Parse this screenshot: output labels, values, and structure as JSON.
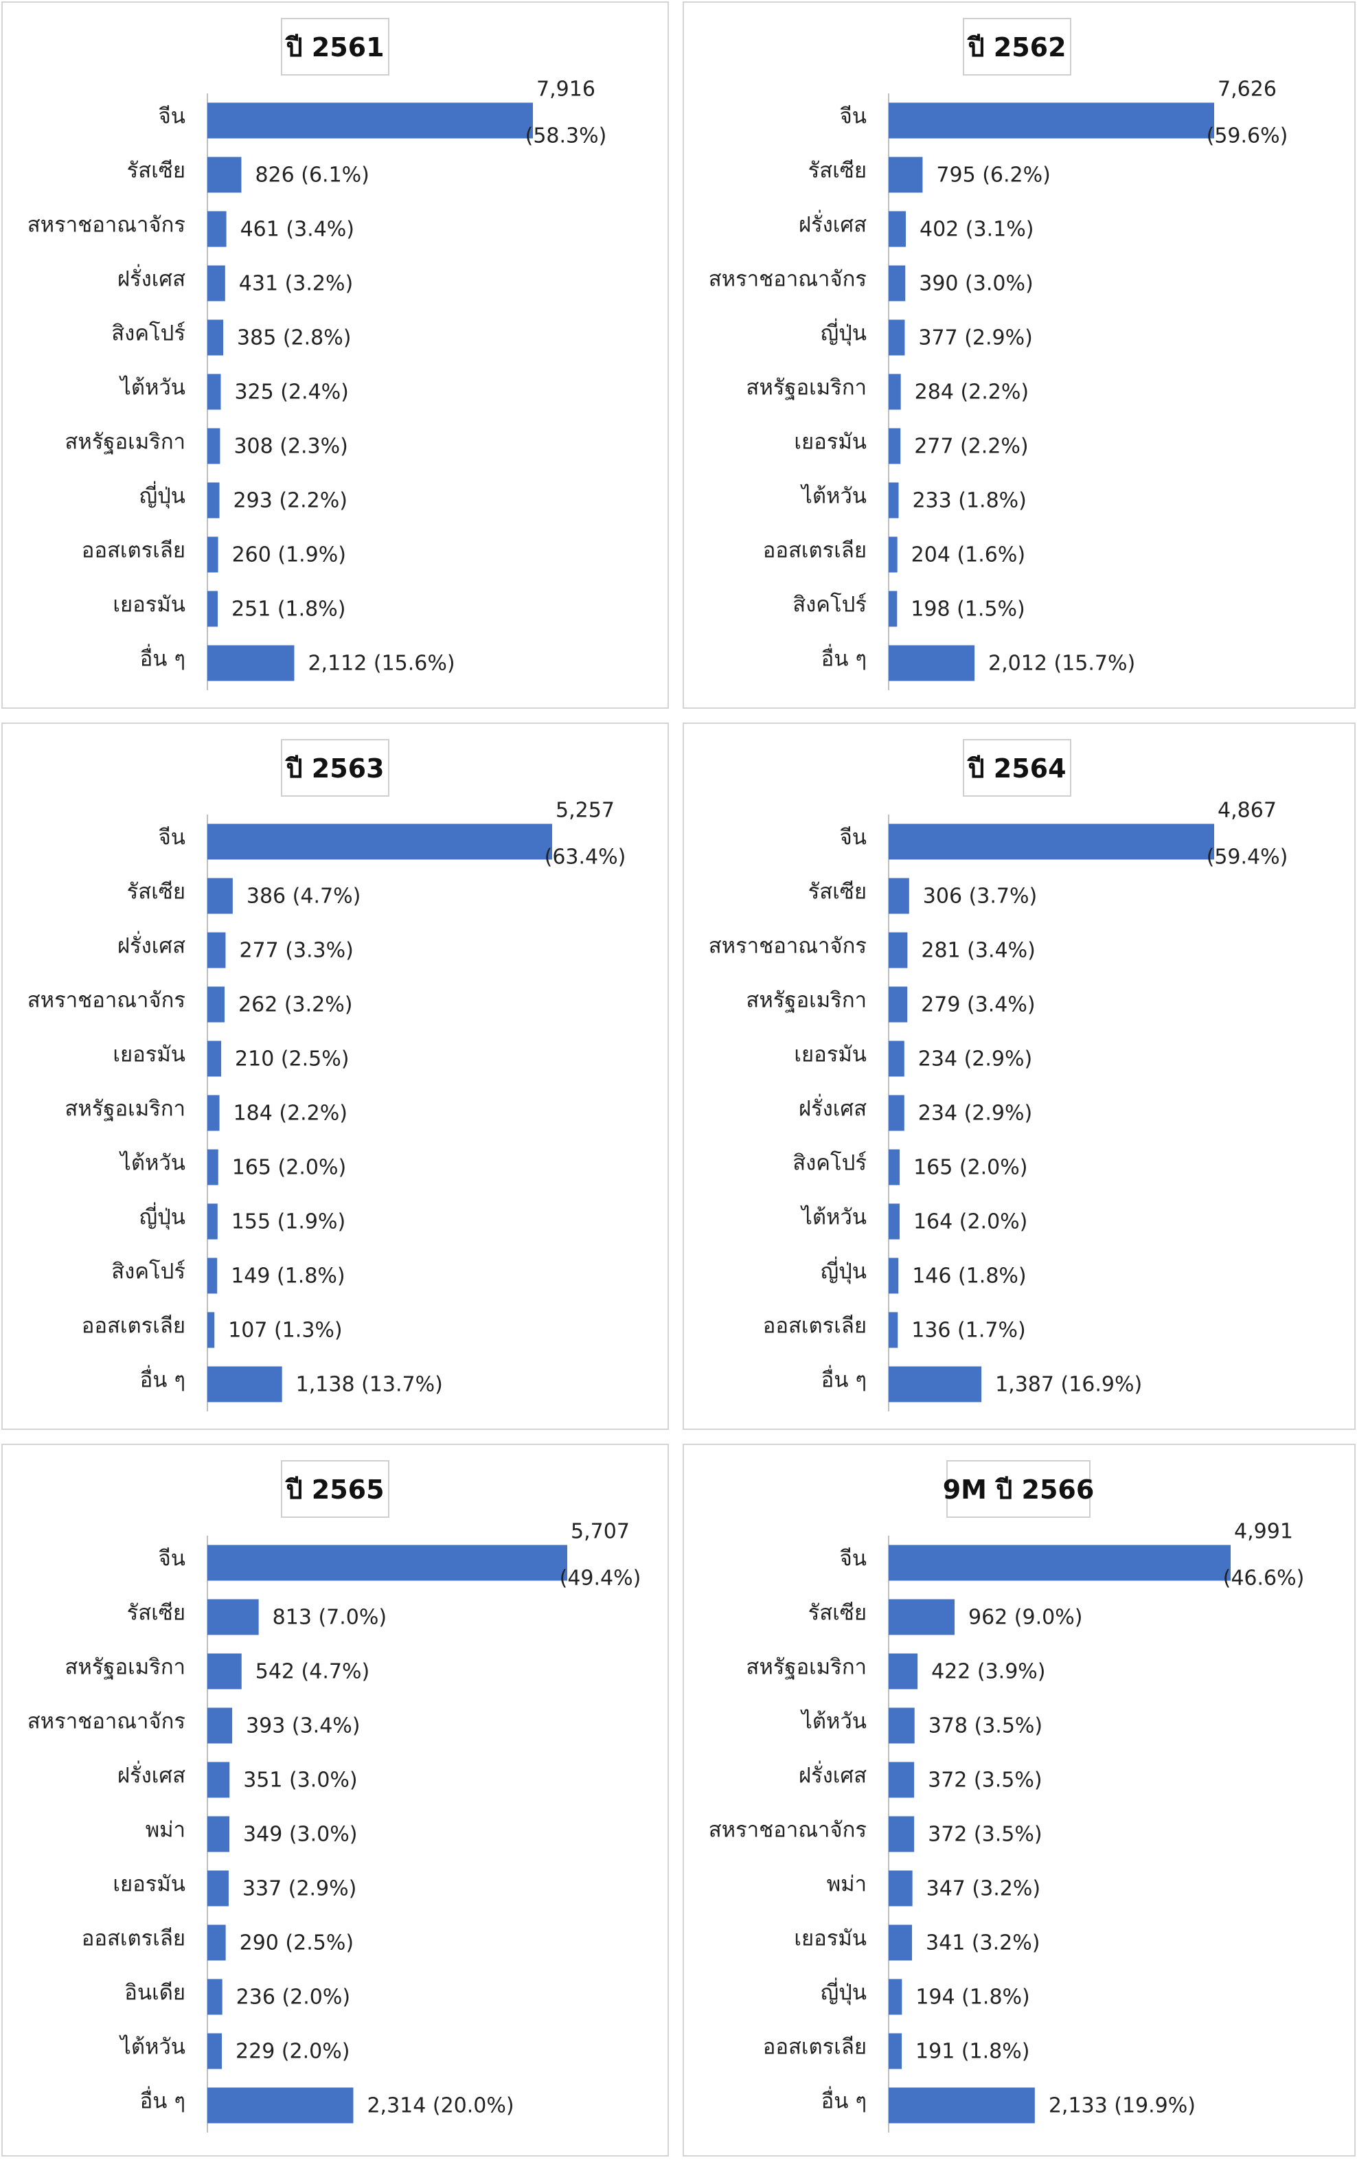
{
  "style": {
    "bar_color": "#4472C4",
    "axis_color": "#bfbfbf"
  },
  "chart_data": [
    {
      "type": "bar",
      "orientation": "horizontal",
      "title": "ปี 2561",
      "categories": [
        "จีน",
        "รัสเซีย",
        "สหราชอาณาจักร",
        "ฝรั่งเศส",
        "สิงคโปร์",
        "ไต้หวัน",
        "สหรัฐอเมริกา",
        "ญี่ปุ่น",
        "ออสเตรเลีย",
        "เยอรมัน",
        "อื่น ๆ"
      ],
      "values": [
        7916,
        826,
        461,
        431,
        385,
        325,
        308,
        293,
        260,
        251,
        2112
      ],
      "data_labels": [
        "7,916 (58.3%)",
        "826 (6.1%)",
        "461 (3.4%)",
        "431 (3.2%)",
        "385 (2.8%)",
        "325 (2.4%)",
        "308 (2.3%)",
        "293 (2.2%)",
        "260 (1.9%)",
        "251 (1.8%)",
        "2,112 (15.6%)"
      ]
    },
    {
      "type": "bar",
      "orientation": "horizontal",
      "title": "ปี 2562",
      "categories": [
        "จีน",
        "รัสเซีย",
        "ฝรั่งเศส",
        "สหราชอาณาจักร",
        "ญี่ปุ่น",
        "สหรัฐอเมริกา",
        "เยอรมัน",
        "ไต้หวัน",
        "ออสเตรเลีย",
        "สิงคโปร์",
        "อื่น ๆ"
      ],
      "values": [
        7626,
        795,
        402,
        390,
        377,
        284,
        277,
        233,
        204,
        198,
        2012
      ],
      "data_labels": [
        "7,626 (59.6%)",
        "795 (6.2%)",
        "402 (3.1%)",
        "390 (3.0%)",
        "377 (2.9%)",
        "284 (2.2%)",
        "277 (2.2%)",
        "233 (1.8%)",
        "204 (1.6%)",
        "198 (1.5%)",
        "2,012 (15.7%)"
      ]
    },
    {
      "type": "bar",
      "orientation": "horizontal",
      "title": "ปี 2563",
      "categories": [
        "จีน",
        "รัสเซีย",
        "ฝรั่งเศส",
        "สหราชอาณาจักร",
        "เยอรมัน",
        "สหรัฐอเมริกา",
        "ไต้หวัน",
        "ญี่ปุ่น",
        "สิงคโปร์",
        "ออสเตรเลีย",
        "อื่น ๆ"
      ],
      "values": [
        5257,
        386,
        277,
        262,
        210,
        184,
        165,
        155,
        149,
        107,
        1138
      ],
      "data_labels": [
        "5,257 (63.4%)",
        "386 (4.7%)",
        "277 (3.3%)",
        "262 (3.2%)",
        "210 (2.5%)",
        "184 (2.2%)",
        "165 (2.0%)",
        "155 (1.9%)",
        "149 (1.8%)",
        "107 (1.3%)",
        "1,138 (13.7%)"
      ]
    },
    {
      "type": "bar",
      "orientation": "horizontal",
      "title": "ปี 2564",
      "categories": [
        "จีน",
        "รัสเซีย",
        "สหราชอาณาจักร",
        "สหรัฐอเมริกา",
        "เยอรมัน",
        "ฝรั่งเศส",
        "สิงคโปร์",
        "ไต้หวัน",
        "ญี่ปุ่น",
        "ออสเตรเลีย",
        "อื่น ๆ"
      ],
      "values": [
        4867,
        306,
        281,
        279,
        234,
        234,
        165,
        164,
        146,
        136,
        1387
      ],
      "data_labels": [
        "4,867 (59.4%)",
        "306 (3.7%)",
        "281 (3.4%)",
        "279 (3.4%)",
        "234 (2.9%)",
        "234 (2.9%)",
        "165 (2.0%)",
        "164 (2.0%)",
        "146 (1.8%)",
        "136 (1.7%)",
        "1,387 (16.9%)"
      ]
    },
    {
      "type": "bar",
      "orientation": "horizontal",
      "title": "ปี 2565",
      "categories": [
        "จีน",
        "รัสเซีย",
        "สหรัฐอเมริกา",
        "สหราชอาณาจักร",
        "ฝรั่งเศส",
        "พม่า",
        "เยอรมัน",
        "ออสเตรเลีย",
        "อินเดีย",
        "ไต้หวัน",
        "อื่น ๆ"
      ],
      "values": [
        5707,
        813,
        542,
        393,
        351,
        349,
        337,
        290,
        236,
        229,
        2314
      ],
      "data_labels": [
        "5,707 (49.4%)",
        "813 (7.0%)",
        "542 (4.7%)",
        "393 (3.4%)",
        "351 (3.0%)",
        "349 (3.0%)",
        "337 (2.9%)",
        "290 (2.5%)",
        "236 (2.0%)",
        "229 (2.0%)",
        "2,314 (20.0%)"
      ]
    },
    {
      "type": "bar",
      "orientation": "horizontal",
      "title": "9M ปี 2566",
      "categories": [
        "จีน",
        "รัสเซีย",
        "สหรัฐอเมริกา",
        "ไต้หวัน",
        "ฝรั่งเศส",
        "สหราชอาณาจักร",
        "พม่า",
        "เยอรมัน",
        "ญี่ปุ่น",
        "ออสเตรเลีย",
        "อื่น ๆ"
      ],
      "values": [
        4991,
        962,
        422,
        378,
        372,
        372,
        347,
        341,
        194,
        191,
        2133
      ],
      "data_labels": [
        "4,991 (46.6%)",
        "962 (9.0%)",
        "422 (3.9%)",
        "378 (3.5%)",
        "372 (3.5%)",
        "372 (3.5%)",
        "347 (3.2%)",
        "341 (3.2%)",
        "194 (1.8%)",
        "191 (1.8%)",
        "2,133 (19.9%)"
      ]
    }
  ]
}
